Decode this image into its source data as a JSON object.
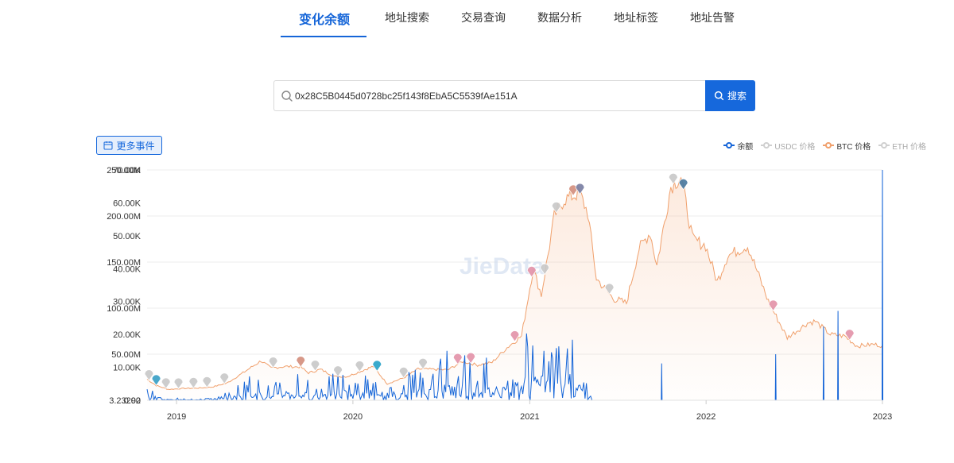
{
  "nav": {
    "tabs": [
      {
        "label": "变化余额",
        "active": true
      },
      {
        "label": "地址搜索"
      },
      {
        "label": "交易查询"
      },
      {
        "label": "数据分析"
      },
      {
        "label": "地址标签"
      },
      {
        "label": "地址告警"
      }
    ]
  },
  "search": {
    "value": "0x28C5B0445d0728bc25f143f8EbA5C5539fAe151A",
    "button_label": "搜索",
    "button_icon": "search-icon"
  },
  "events_button": {
    "label": "更多事件",
    "icon": "calendar-icon"
  },
  "legend": [
    {
      "label": "余额",
      "color": "#1565d8",
      "active": true
    },
    {
      "label": "USDC 价格",
      "color": "#bdbdbd",
      "active": false
    },
    {
      "label": "BTC 价格",
      "color": "#f0a06c",
      "active": true
    },
    {
      "label": "ETH 价格",
      "color": "#bdbdbd",
      "active": false
    }
  ],
  "watermark": "JieData",
  "chart_data": {
    "type": "line",
    "x_ticks": [
      "2019",
      "2020",
      "2021",
      "2022",
      "2023"
    ],
    "y_left_ticks": [
      "3.23292",
      "50.00M",
      "100.00M",
      "150.00M",
      "200.00M",
      "250.00M"
    ],
    "y_left_range": [
      0,
      250000000
    ],
    "y_right_ticks": [
      "0.00",
      "10.00K",
      "20.00K",
      "30.00K",
      "40.00K",
      "50.00K",
      "60.00K",
      "70.00K"
    ],
    "y_right_range": [
      0,
      70000
    ],
    "grid": true,
    "legend_position": "top-right",
    "series": [
      {
        "name": "BTC 价格",
        "color": "#f0a06c",
        "axis": "right",
        "points": [
          [
            "2018-11-01",
            6400
          ],
          [
            "2018-11-20",
            4500
          ],
          [
            "2018-12-15",
            3300
          ],
          [
            "2019-01-15",
            3600
          ],
          [
            "2019-02-15",
            3700
          ],
          [
            "2019-03-15",
            4000
          ],
          [
            "2019-04-15",
            5200
          ],
          [
            "2019-05-15",
            8000
          ],
          [
            "2019-06-25",
            12000
          ],
          [
            "2019-07-15",
            9800
          ],
          [
            "2019-08-15",
            10300
          ],
          [
            "2019-09-15",
            10100
          ],
          [
            "2019-10-01",
            8300
          ],
          [
            "2019-10-26",
            9400
          ],
          [
            "2019-11-25",
            7200
          ],
          [
            "2019-12-20",
            7200
          ],
          [
            "2020-01-15",
            8700
          ],
          [
            "2020-02-12",
            10300
          ],
          [
            "2020-03-12",
            5000
          ],
          [
            "2020-04-15",
            6800
          ],
          [
            "2020-05-15",
            9500
          ],
          [
            "2020-06-15",
            9400
          ],
          [
            "2020-07-15",
            9200
          ],
          [
            "2020-08-15",
            11800
          ],
          [
            "2020-09-15",
            10700
          ],
          [
            "2020-10-15",
            11500
          ],
          [
            "2020-11-15",
            16000
          ],
          [
            "2020-12-15",
            19500
          ],
          [
            "2021-01-08",
            40000
          ],
          [
            "2021-01-25",
            32000
          ],
          [
            "2021-02-21",
            56000
          ],
          [
            "2021-03-13",
            61000
          ],
          [
            "2021-04-14",
            63000
          ],
          [
            "2021-05-01",
            57000
          ],
          [
            "2021-05-19",
            37000
          ],
          [
            "2021-06-22",
            31000
          ],
          [
            "2021-07-20",
            29500
          ],
          [
            "2021-08-15",
            46000
          ],
          [
            "2021-09-07",
            51000
          ],
          [
            "2021-09-21",
            41000
          ],
          [
            "2021-10-20",
            65000
          ],
          [
            "2021-11-10",
            68000
          ],
          [
            "2021-12-04",
            49000
          ],
          [
            "2021-12-31",
            47000
          ],
          [
            "2022-01-24",
            36000
          ],
          [
            "2022-02-15",
            44000
          ],
          [
            "2022-03-28",
            47000
          ],
          [
            "2022-05-10",
            30000
          ],
          [
            "2022-06-18",
            19000
          ],
          [
            "2022-07-30",
            23500
          ],
          [
            "2022-08-15",
            24000
          ],
          [
            "2022-09-15",
            20000
          ],
          [
            "2022-10-15",
            19500
          ],
          [
            "2022-11-09",
            16500
          ],
          [
            "2022-12-15",
            17000
          ],
          [
            "2023-01-01",
            16600
          ]
        ]
      },
      {
        "name": "余额",
        "color": "#1565d8",
        "axis": "left",
        "points": [
          [
            "2018-11-01",
            12000000
          ],
          [
            "2018-11-15",
            5000000
          ],
          [
            "2018-12-10",
            2000000
          ],
          [
            "2019-02-01",
            1000000
          ],
          [
            "2019-04-01",
            3000000
          ],
          [
            "2019-06-01",
            18000000
          ],
          [
            "2019-07-15",
            10000000
          ],
          [
            "2019-09-01",
            25000000
          ],
          [
            "2019-10-15",
            12000000
          ],
          [
            "2019-12-01",
            20000000
          ],
          [
            "2020-02-01",
            18000000
          ],
          [
            "2020-03-15",
            8000000
          ],
          [
            "2020-05-01",
            22000000
          ],
          [
            "2020-06-15",
            30000000
          ],
          [
            "2020-08-01",
            45000000
          ],
          [
            "2020-09-15",
            25000000
          ],
          [
            "2020-11-01",
            40000000
          ],
          [
            "2020-12-15",
            55000000
          ],
          [
            "2021-01-20",
            60000000
          ],
          [
            "2021-02-20",
            35000000
          ],
          [
            "2021-03-20",
            55000000
          ],
          [
            "2021-04-20",
            30000000
          ],
          [
            "2021-05-01",
            10000000
          ],
          [
            "2021-05-10",
            0
          ],
          [
            "2021-10-01",
            40000000
          ],
          [
            "2022-06-01",
            50000000
          ],
          [
            "2022-09-01",
            80000000
          ],
          [
            "2022-10-01",
            97000000
          ],
          [
            "2023-01-01",
            250000000
          ]
        ]
      }
    ],
    "events": [
      {
        "date": "2018-11-05",
        "color": "#c9c9c9"
      },
      {
        "date": "2018-11-20",
        "color": "#3aa0c6"
      },
      {
        "date": "2018-12-10",
        "color": "#c9c9c9"
      },
      {
        "date": "2019-01-05",
        "color": "#c9c9c9"
      },
      {
        "date": "2019-02-05",
        "color": "#c9c9c9"
      },
      {
        "date": "2019-03-05",
        "color": "#c9c9c9"
      },
      {
        "date": "2019-04-10",
        "color": "#c9c9c9"
      },
      {
        "date": "2019-07-20",
        "color": "#c9c9c9"
      },
      {
        "date": "2019-09-15",
        "color": "#d4907e"
      },
      {
        "date": "2019-10-15",
        "color": "#c9c9c9"
      },
      {
        "date": "2019-12-01",
        "color": "#c9c9c9"
      },
      {
        "date": "2020-01-15",
        "color": "#c9c9c9"
      },
      {
        "date": "2020-02-20",
        "color": "#2aa3c8"
      },
      {
        "date": "2020-04-15",
        "color": "#c9c9c9"
      },
      {
        "date": "2020-05-25",
        "color": "#c9c9c9"
      },
      {
        "date": "2020-08-05",
        "color": "#e394aa"
      },
      {
        "date": "2020-09-01",
        "color": "#e394aa"
      },
      {
        "date": "2020-12-01",
        "color": "#e394aa"
      },
      {
        "date": "2021-01-05",
        "color": "#e394aa"
      },
      {
        "date": "2021-02-01",
        "color": "#c9c9c9"
      },
      {
        "date": "2021-02-25",
        "color": "#c9c9c9"
      },
      {
        "date": "2021-04-01",
        "color": "#d4907e"
      },
      {
        "date": "2021-04-15",
        "color": "#7a7fa3"
      },
      {
        "date": "2021-06-15",
        "color": "#c9c9c9"
      },
      {
        "date": "2021-10-25",
        "color": "#c9c9c9"
      },
      {
        "date": "2021-11-15",
        "color": "#4b7aa0"
      },
      {
        "date": "2022-05-20",
        "color": "#e394aa"
      },
      {
        "date": "2022-10-25",
        "color": "#e394aa"
      }
    ]
  }
}
